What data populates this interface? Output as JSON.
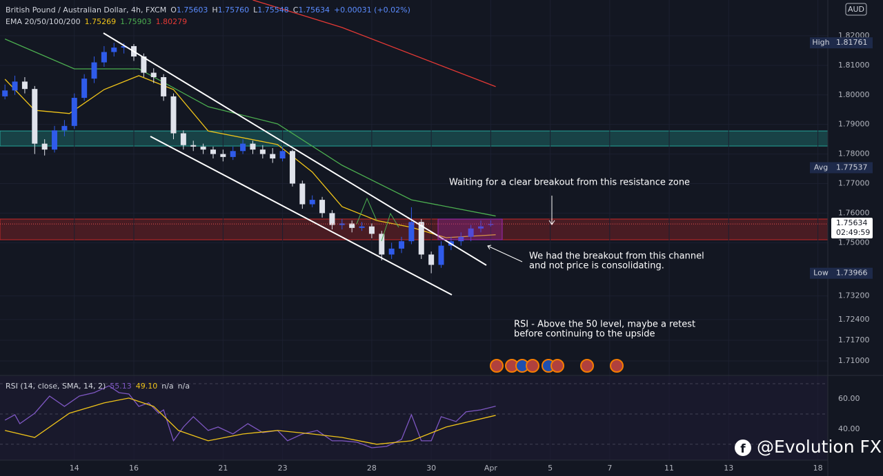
{
  "chart_data": [
    {
      "type": "candlestick",
      "title": "British Pound / Australian Dollar, 4h, FXCM",
      "ohlc_labels": [
        "O",
        "H",
        "L",
        "C"
      ],
      "ohlc_values": [
        "1.75603",
        "1.75760",
        "1.75548",
        "1.75634"
      ],
      "change": "+0.00031 (+0.02%)",
      "indicator": "EMA 20/50/100/200",
      "currency": "AUD",
      "up_color": "#2f5bea",
      "down_color": "#e0e3eb",
      "x": [
        0,
        2,
        4,
        6,
        8,
        10,
        12,
        14,
        16,
        18,
        20,
        22,
        24,
        26,
        28,
        30,
        32,
        34,
        36,
        38,
        40,
        42,
        44,
        46,
        48,
        50,
        52,
        54,
        56,
        58,
        60,
        62,
        64,
        66,
        68,
        70,
        72,
        74,
        76,
        78,
        80,
        82,
        84,
        86,
        88,
        90,
        92,
        94,
        96,
        98
      ],
      "candles": [
        [
          1.7995,
          1.8035,
          1.7985,
          1.8015
        ],
        [
          1.8015,
          1.8065,
          1.8,
          1.8045
        ],
        [
          1.8045,
          1.806,
          1.8005,
          1.802
        ],
        [
          1.802,
          1.803,
          1.78,
          1.7835
        ],
        [
          1.7835,
          1.785,
          1.7795,
          1.7815
        ],
        [
          1.7815,
          1.7895,
          1.7805,
          1.788
        ],
        [
          1.788,
          1.7915,
          1.786,
          1.7895
        ],
        [
          1.7895,
          1.8005,
          1.7885,
          1.799
        ],
        [
          1.799,
          1.807,
          1.798,
          1.8055
        ],
        [
          1.8055,
          1.813,
          1.804,
          1.811
        ],
        [
          1.811,
          1.8165,
          1.8095,
          1.8145
        ],
        [
          1.8145,
          1.81761,
          1.813,
          1.816
        ],
        [
          1.816,
          1.8175,
          1.814,
          1.8165
        ],
        [
          1.8165,
          1.8172,
          1.8115,
          1.813
        ],
        [
          1.813,
          1.814,
          1.806,
          1.8075
        ],
        [
          1.8075,
          1.809,
          1.804,
          1.806
        ],
        [
          1.806,
          1.807,
          1.798,
          1.7995
        ],
        [
          1.7995,
          1.8005,
          1.785,
          1.787
        ],
        [
          1.787,
          1.788,
          1.7815,
          1.783
        ],
        [
          1.783,
          1.7845,
          1.781,
          1.7825
        ],
        [
          1.7825,
          1.7835,
          1.78,
          1.7815
        ],
        [
          1.7815,
          1.7825,
          1.7785,
          1.78
        ],
        [
          1.78,
          1.7815,
          1.7775,
          1.779
        ],
        [
          1.779,
          1.7825,
          1.778,
          1.781
        ],
        [
          1.781,
          1.785,
          1.78,
          1.7835
        ],
        [
          1.7835,
          1.7845,
          1.78,
          1.7815
        ],
        [
          1.7815,
          1.783,
          1.7785,
          1.78
        ],
        [
          1.78,
          1.782,
          1.777,
          1.7785
        ],
        [
          1.7785,
          1.7825,
          1.7775,
          1.781
        ],
        [
          1.781,
          1.7815,
          1.769,
          1.77
        ],
        [
          1.77,
          1.771,
          1.7615,
          1.763
        ],
        [
          1.763,
          1.766,
          1.762,
          1.7645
        ],
        [
          1.7645,
          1.7655,
          1.7585,
          1.76
        ],
        [
          1.76,
          1.761,
          1.7545,
          1.756
        ],
        [
          1.756,
          1.758,
          1.7545,
          1.7565
        ],
        [
          1.7565,
          1.7575,
          1.7535,
          1.755
        ],
        [
          1.755,
          1.757,
          1.754,
          1.7555
        ],
        [
          1.7555,
          1.7565,
          1.7515,
          1.753
        ],
        [
          1.753,
          1.754,
          1.744,
          1.746
        ],
        [
          1.746,
          1.75,
          1.7445,
          1.748
        ],
        [
          1.748,
          1.752,
          1.7465,
          1.7505
        ],
        [
          1.7505,
          1.762,
          1.7495,
          1.757
        ],
        [
          1.757,
          1.758,
          1.7445,
          1.746
        ],
        [
          1.746,
          1.747,
          1.73966,
          1.7425
        ],
        [
          1.7425,
          1.7505,
          1.7415,
          1.749
        ],
        [
          1.749,
          1.752,
          1.7475,
          1.7505
        ],
        [
          1.7505,
          1.7535,
          1.749,
          1.752
        ],
        [
          1.752,
          1.756,
          1.7505,
          1.7548
        ],
        [
          1.7548,
          1.7575,
          1.7535,
          1.7555
        ],
        [
          1.75603,
          1.7576,
          1.75548,
          1.75634
        ]
      ],
      "series": [
        {
          "color": "#f0c419",
          "x": [
            0,
            6,
            13,
            20,
            27,
            34,
            41,
            55,
            62,
            68,
            75,
            82,
            89,
            99
          ],
          "values": [
            1.8053,
            1.7948,
            1.7937,
            1.8018,
            1.8065,
            1.8018,
            1.7878,
            1.7832,
            1.7739,
            1.7622,
            1.7575,
            1.7552,
            1.7517,
            1.75269
          ]
        },
        {
          "color": "#4caf50",
          "x": [
            0,
            14,
            27,
            41,
            55,
            68,
            82,
            99
          ],
          "values": [
            1.8189,
            1.8088,
            1.8088,
            1.796,
            1.7902,
            1.7762,
            1.7645,
            1.75903
          ]
        },
        {
          "color": "#e53935",
          "x": [
            50,
            68,
            99
          ],
          "values": [
            1.8321,
            1.8228,
            1.80279
          ]
        }
      ],
      "zones": [
        {
          "range": [
            1.7827,
            1.7878
          ],
          "color": "#26a69a"
        },
        {
          "range": [
            1.751,
            1.758
          ],
          "color": "#c62828"
        }
      ],
      "xlim": [
        -1,
        166
      ],
      "xticks": [
        {
          "value": 14,
          "label": "14"
        },
        {
          "value": 26,
          "label": "16"
        },
        {
          "value": 44,
          "label": "21"
        },
        {
          "value": 56,
          "label": "23"
        },
        {
          "value": 74,
          "label": "28"
        },
        {
          "value": 86,
          "label": "30"
        },
        {
          "value": 98,
          "label": "Apr"
        },
        {
          "value": 110,
          "label": "5"
        },
        {
          "value": 122,
          "label": "7"
        },
        {
          "value": 134,
          "label": "11"
        },
        {
          "value": 146,
          "label": "13"
        },
        {
          "value": 164,
          "label": "18"
        }
      ],
      "ylim": [
        1.7051,
        1.8321
      ],
      "yticks": [
        {
          "value": 1.82,
          "label": "1.82000"
        },
        {
          "value": 1.81,
          "label": "1.81000"
        },
        {
          "value": 1.8,
          "label": "1.80000"
        },
        {
          "value": 1.79,
          "label": "1.79000"
        },
        {
          "value": 1.78,
          "label": "1.78000"
        },
        {
          "value": 1.77,
          "label": "1.77000"
        },
        {
          "value": 1.76,
          "label": "1.76000"
        },
        {
          "value": 1.75,
          "label": "1.75000"
        },
        {
          "value": 1.732,
          "label": "1.73200"
        },
        {
          "value": 1.724,
          "label": "1.72400"
        },
        {
          "value": 1.717,
          "label": "1.71700"
        },
        {
          "value": 1.71,
          "label": "1.71000"
        }
      ],
      "badges": [
        {
          "label": "High",
          "value": 1.81761
        },
        {
          "label": "Avg",
          "value": 1.77537
        },
        {
          "label": "Low",
          "value": 1.73966
        }
      ],
      "current": {
        "value": 1.75634,
        "countdown": "02:49:59"
      },
      "annotations": [
        [
          "Waiting for a clear breakout from this resistance zone"
        ],
        [
          "We had the breakout from this channel",
          "and not price is consolidating."
        ],
        [
          "RSI - Above the 50 level, maybe a retest",
          "before continuing to the upside"
        ]
      ],
      "watermark": "@Evolution FX"
    },
    {
      "type": "line",
      "title": "RSI (14, close, SMA, 14, 2)",
      "legend_values": [
        "55.13",
        "49.10",
        "n/a",
        "n/a"
      ],
      "series": [
        {
          "color": "#7e57c2",
          "x": [
            0,
            2,
            3,
            6,
            9,
            12,
            15,
            18,
            21,
            23,
            25,
            27,
            29,
            31,
            32,
            34,
            36,
            38,
            41,
            43,
            46,
            49,
            52,
            55,
            57,
            60,
            63,
            66,
            68,
            71,
            74,
            77,
            80,
            82,
            84,
            86,
            88,
            91,
            93,
            96,
            99
          ],
          "values": [
            45.9,
            49.5,
            43.6,
            50.5,
            61.8,
            55,
            61.8,
            64.1,
            68.6,
            64.1,
            63.2,
            55,
            57.3,
            50.5,
            52.7,
            32.3,
            41.4,
            48.2,
            39.1,
            41.4,
            36.8,
            43.6,
            37.7,
            39.1,
            32.3,
            36.8,
            39.1,
            32.3,
            32.3,
            31.4,
            27.7,
            28.6,
            33.2,
            49.5,
            32.3,
            32.3,
            48.2,
            45,
            51.4,
            52.7,
            55.13
          ]
        },
        {
          "color": "#f0c419",
          "x": [
            0,
            6,
            13,
            20,
            25,
            30,
            35,
            41,
            48,
            55,
            62,
            68,
            75,
            82,
            89,
            99
          ],
          "values": [
            39.1,
            34.5,
            50.5,
            57.3,
            60.5,
            55,
            39.1,
            32.3,
            36.8,
            39.1,
            36.8,
            34.5,
            30,
            32.3,
            41.4,
            49.1
          ]
        }
      ],
      "ylim": [
        19.5,
        75
      ],
      "yticks": [
        {
          "value": 60,
          "label": "60.00"
        },
        {
          "value": 40,
          "label": "40.00"
        }
      ],
      "bands": [
        70,
        50,
        30
      ]
    }
  ]
}
